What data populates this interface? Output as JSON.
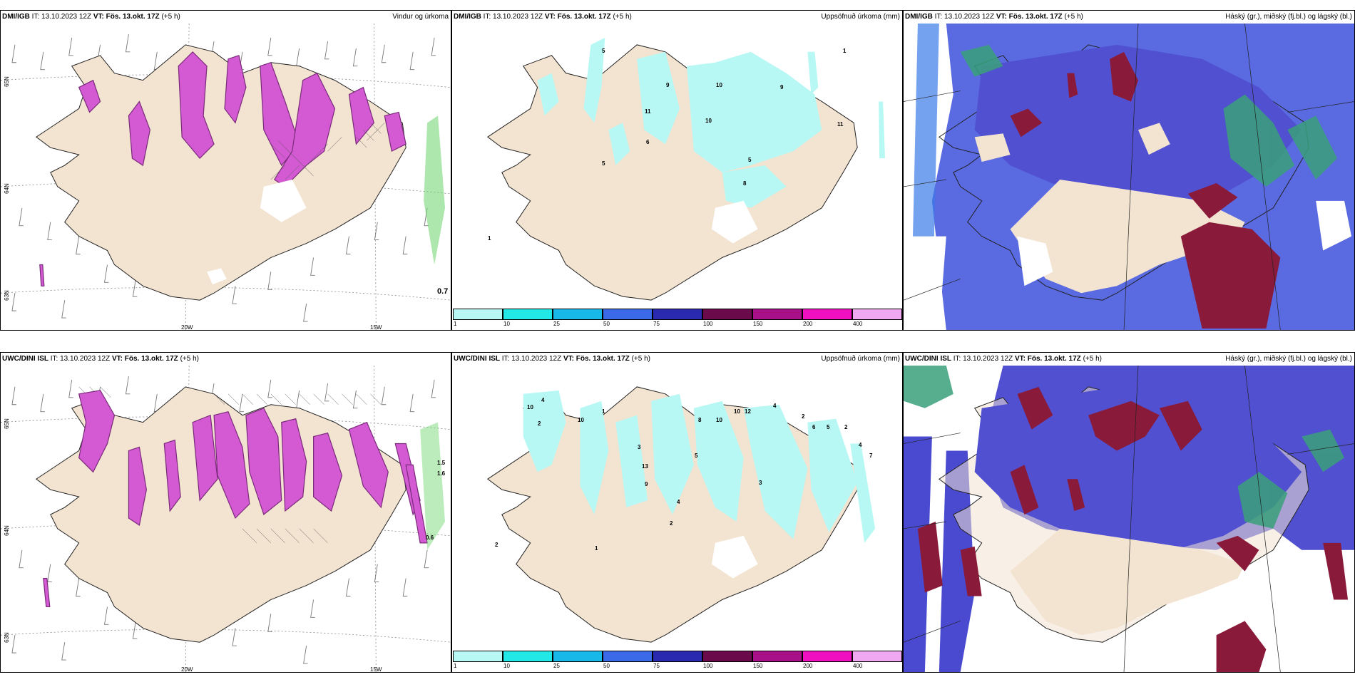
{
  "colors": {
    "land": "#f3e3d1",
    "precip_light": "#b8f8f4",
    "precip_magenta": "#d45ad4",
    "precip_dark": "#7a2a7a",
    "cloud_high": "#7a1a3a",
    "cloud_mid": "#4a4ad0",
    "cloud_low": "#3aa07a"
  },
  "panels": [
    {
      "source": "DMI/IGB",
      "it": "IT: 13.10.2023 12Z",
      "vt": "VT: Fös. 13.okt. 17Z",
      "lead": "(+5 h)",
      "title": "Vindur og úrkoma",
      "lat_labels": [
        "65N",
        "64N",
        "63N"
      ],
      "lon_labels": [
        "20W",
        "15W"
      ],
      "value_labels": [
        "0.7"
      ]
    },
    {
      "source": "DMI/IGB",
      "it": "IT: 13.10.2023 12Z",
      "vt": "VT: Fös. 13.okt. 17Z",
      "lead": "(+5 h)",
      "title": "Uppsöfnuð úrkoma (mm)",
      "amounts": [
        "5",
        "1",
        "9",
        "10",
        "9",
        "11",
        "10",
        "11",
        "6",
        "5",
        "5",
        "8",
        "1"
      ]
    },
    {
      "source": "DMI/IGB",
      "it": "IT: 13.10.2023 12Z",
      "vt": "VT: Fös. 13.okt. 17Z",
      "lead": "(+5 h)",
      "title": "Háský (gr.), miðský (fj.bl.) og lágský (bl.)"
    },
    {
      "source": "UWC/DINI ISL",
      "it": "IT: 13.10.2023 12Z",
      "vt": "VT: Fös. 13.okt. 17Z",
      "lead": "(+5 h)",
      "title": "Vindur og úrkoma",
      "lat_labels": [
        "65N",
        "64N",
        "63N"
      ],
      "lon_labels": [
        "20W",
        "15W"
      ],
      "value_labels": [
        "1.5",
        "1.6",
        "0.6"
      ]
    },
    {
      "source": "UWC/DINI ISL",
      "it": "IT: 13.10.2023 12Z",
      "vt": "VT: Fös. 13.okt. 17Z",
      "lead": "(+5 h)",
      "title": "Uppsöfnuð úrkoma (mm)",
      "amounts": [
        "10",
        "4",
        "2",
        "1",
        "10",
        "8",
        "10",
        "10",
        "12",
        "4",
        "2",
        "6",
        "5",
        "2",
        "4",
        "7",
        "3",
        "13",
        "5",
        "9",
        "4",
        "3",
        "2",
        "1",
        "2"
      ]
    },
    {
      "source": "UWC/DINI ISL",
      "it": "IT: 13.10.2023 12Z",
      "vt": "VT: Fös. 13.okt. 17Z",
      "lead": "(+5 h)",
      "title": "Háský (gr.), miðský (fj.bl.) og lágský (bl.)"
    }
  ],
  "colorbar": {
    "ticks": [
      "1",
      "10",
      "25",
      "50",
      "75",
      "100",
      "150",
      "200",
      "400"
    ],
    "colors": [
      "#b8f8f4",
      "#22e8e8",
      "#18b8e8",
      "#3a6ae8",
      "#2a2ab0",
      "#6a0a4a",
      "#a8108a",
      "#f010c0",
      "#f0a8f0"
    ]
  }
}
